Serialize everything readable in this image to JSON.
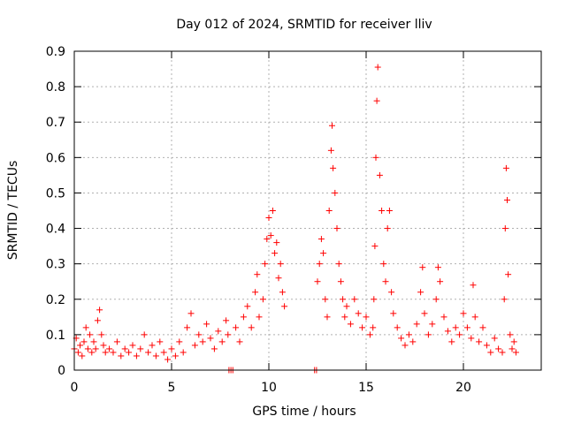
{
  "chart_data": {
    "type": "scatter",
    "title": "Day 012 of 2024, SRMTID for receiver lliv",
    "xlabel": "GPS time / hours",
    "ylabel": "SRMTID / TECUs",
    "xlim": [
      0,
      24
    ],
    "ylim": [
      0,
      0.9
    ],
    "x_ticks": [
      0,
      5,
      10,
      15,
      20
    ],
    "x_tick_labels": [
      "0",
      "5",
      "10",
      "15",
      "20"
    ],
    "y_ticks": [
      0,
      0.1,
      0.2,
      0.3,
      0.4,
      0.5,
      0.6,
      0.7,
      0.8,
      0.9
    ],
    "y_tick_labels": [
      "0",
      "0.1",
      "0.2",
      "0.3",
      "0.4",
      "0.5",
      "0.6",
      "0.7",
      "0.8",
      "0.9"
    ],
    "grid": true,
    "marker": "+",
    "series": [
      {
        "name": "SRMTID",
        "color": "#ff0000",
        "points": [
          [
            0.0,
            0.06
          ],
          [
            0.1,
            0.09
          ],
          [
            0.2,
            0.05
          ],
          [
            0.3,
            0.07
          ],
          [
            0.4,
            0.04
          ],
          [
            0.5,
            0.08
          ],
          [
            0.6,
            0.12
          ],
          [
            0.7,
            0.06
          ],
          [
            0.8,
            0.1
          ],
          [
            0.9,
            0.05
          ],
          [
            1.0,
            0.08
          ],
          [
            1.1,
            0.06
          ],
          [
            1.2,
            0.14
          ],
          [
            1.3,
            0.17
          ],
          [
            1.4,
            0.1
          ],
          [
            1.5,
            0.07
          ],
          [
            1.6,
            0.05
          ],
          [
            1.8,
            0.06
          ],
          [
            2.0,
            0.05
          ],
          [
            2.2,
            0.08
          ],
          [
            2.4,
            0.04
          ],
          [
            2.6,
            0.06
          ],
          [
            2.8,
            0.05
          ],
          [
            3.0,
            0.07
          ],
          [
            3.2,
            0.04
          ],
          [
            3.4,
            0.06
          ],
          [
            3.6,
            0.1
          ],
          [
            3.8,
            0.05
          ],
          [
            4.0,
            0.07
          ],
          [
            4.2,
            0.04
          ],
          [
            4.4,
            0.08
          ],
          [
            4.6,
            0.05
          ],
          [
            4.8,
            0.03
          ],
          [
            5.0,
            0.06
          ],
          [
            5.2,
            0.04
          ],
          [
            5.4,
            0.08
          ],
          [
            5.6,
            0.05
          ],
          [
            5.8,
            0.12
          ],
          [
            6.0,
            0.16
          ],
          [
            6.2,
            0.07
          ],
          [
            6.4,
            0.1
          ],
          [
            6.6,
            0.08
          ],
          [
            6.8,
            0.13
          ],
          [
            7.0,
            0.09
          ],
          [
            7.2,
            0.06
          ],
          [
            7.4,
            0.11
          ],
          [
            7.6,
            0.08
          ],
          [
            7.8,
            0.14
          ],
          [
            7.9,
            0.1
          ],
          [
            7.95,
            0.0
          ],
          [
            8.05,
            0.0
          ],
          [
            8.15,
            0.0
          ],
          [
            8.3,
            0.12
          ],
          [
            8.5,
            0.08
          ],
          [
            8.7,
            0.15
          ],
          [
            8.9,
            0.18
          ],
          [
            9.1,
            0.12
          ],
          [
            9.3,
            0.22
          ],
          [
            9.4,
            0.27
          ],
          [
            9.5,
            0.15
          ],
          [
            9.7,
            0.2
          ],
          [
            9.8,
            0.3
          ],
          [
            9.9,
            0.37
          ],
          [
            10.0,
            0.43
          ],
          [
            10.1,
            0.38
          ],
          [
            10.2,
            0.45
          ],
          [
            10.3,
            0.33
          ],
          [
            10.4,
            0.36
          ],
          [
            10.5,
            0.26
          ],
          [
            10.6,
            0.3
          ],
          [
            10.7,
            0.22
          ],
          [
            10.8,
            0.18
          ],
          [
            12.35,
            0.0
          ],
          [
            12.45,
            0.0
          ],
          [
            12.5,
            0.25
          ],
          [
            12.6,
            0.3
          ],
          [
            12.7,
            0.37
          ],
          [
            12.8,
            0.33
          ],
          [
            12.9,
            0.2
          ],
          [
            13.0,
            0.15
          ],
          [
            13.1,
            0.45
          ],
          [
            13.2,
            0.62
          ],
          [
            13.25,
            0.69
          ],
          [
            13.3,
            0.57
          ],
          [
            13.4,
            0.5
          ],
          [
            13.5,
            0.4
          ],
          [
            13.6,
            0.3
          ],
          [
            13.7,
            0.25
          ],
          [
            13.8,
            0.2
          ],
          [
            13.9,
            0.15
          ],
          [
            14.0,
            0.18
          ],
          [
            14.2,
            0.13
          ],
          [
            14.4,
            0.2
          ],
          [
            14.6,
            0.16
          ],
          [
            14.8,
            0.12
          ],
          [
            15.0,
            0.15
          ],
          [
            15.2,
            0.1
          ],
          [
            15.35,
            0.12
          ],
          [
            15.4,
            0.2
          ],
          [
            15.45,
            0.35
          ],
          [
            15.5,
            0.6
          ],
          [
            15.55,
            0.76
          ],
          [
            15.6,
            0.855
          ],
          [
            15.7,
            0.55
          ],
          [
            15.8,
            0.45
          ],
          [
            15.9,
            0.3
          ],
          [
            16.0,
            0.25
          ],
          [
            16.1,
            0.4
          ],
          [
            16.2,
            0.45
          ],
          [
            16.3,
            0.22
          ],
          [
            16.4,
            0.16
          ],
          [
            16.6,
            0.12
          ],
          [
            16.8,
            0.09
          ],
          [
            17.0,
            0.07
          ],
          [
            17.2,
            0.1
          ],
          [
            17.4,
            0.08
          ],
          [
            17.6,
            0.13
          ],
          [
            17.8,
            0.22
          ],
          [
            17.9,
            0.29
          ],
          [
            18.0,
            0.16
          ],
          [
            18.2,
            0.1
          ],
          [
            18.4,
            0.13
          ],
          [
            18.6,
            0.2
          ],
          [
            18.7,
            0.29
          ],
          [
            18.8,
            0.25
          ],
          [
            19.0,
            0.15
          ],
          [
            19.2,
            0.11
          ],
          [
            19.4,
            0.08
          ],
          [
            19.6,
            0.12
          ],
          [
            19.8,
            0.1
          ],
          [
            20.0,
            0.16
          ],
          [
            20.2,
            0.12
          ],
          [
            20.4,
            0.09
          ],
          [
            20.5,
            0.24
          ],
          [
            20.6,
            0.15
          ],
          [
            20.8,
            0.08
          ],
          [
            21.0,
            0.12
          ],
          [
            21.2,
            0.07
          ],
          [
            21.4,
            0.05
          ],
          [
            21.6,
            0.09
          ],
          [
            21.8,
            0.06
          ],
          [
            22.0,
            0.05
          ],
          [
            22.1,
            0.2
          ],
          [
            22.15,
            0.4
          ],
          [
            22.2,
            0.57
          ],
          [
            22.25,
            0.48
          ],
          [
            22.3,
            0.27
          ],
          [
            22.4,
            0.1
          ],
          [
            22.5,
            0.06
          ],
          [
            22.6,
            0.08
          ],
          [
            22.7,
            0.05
          ]
        ]
      }
    ]
  }
}
